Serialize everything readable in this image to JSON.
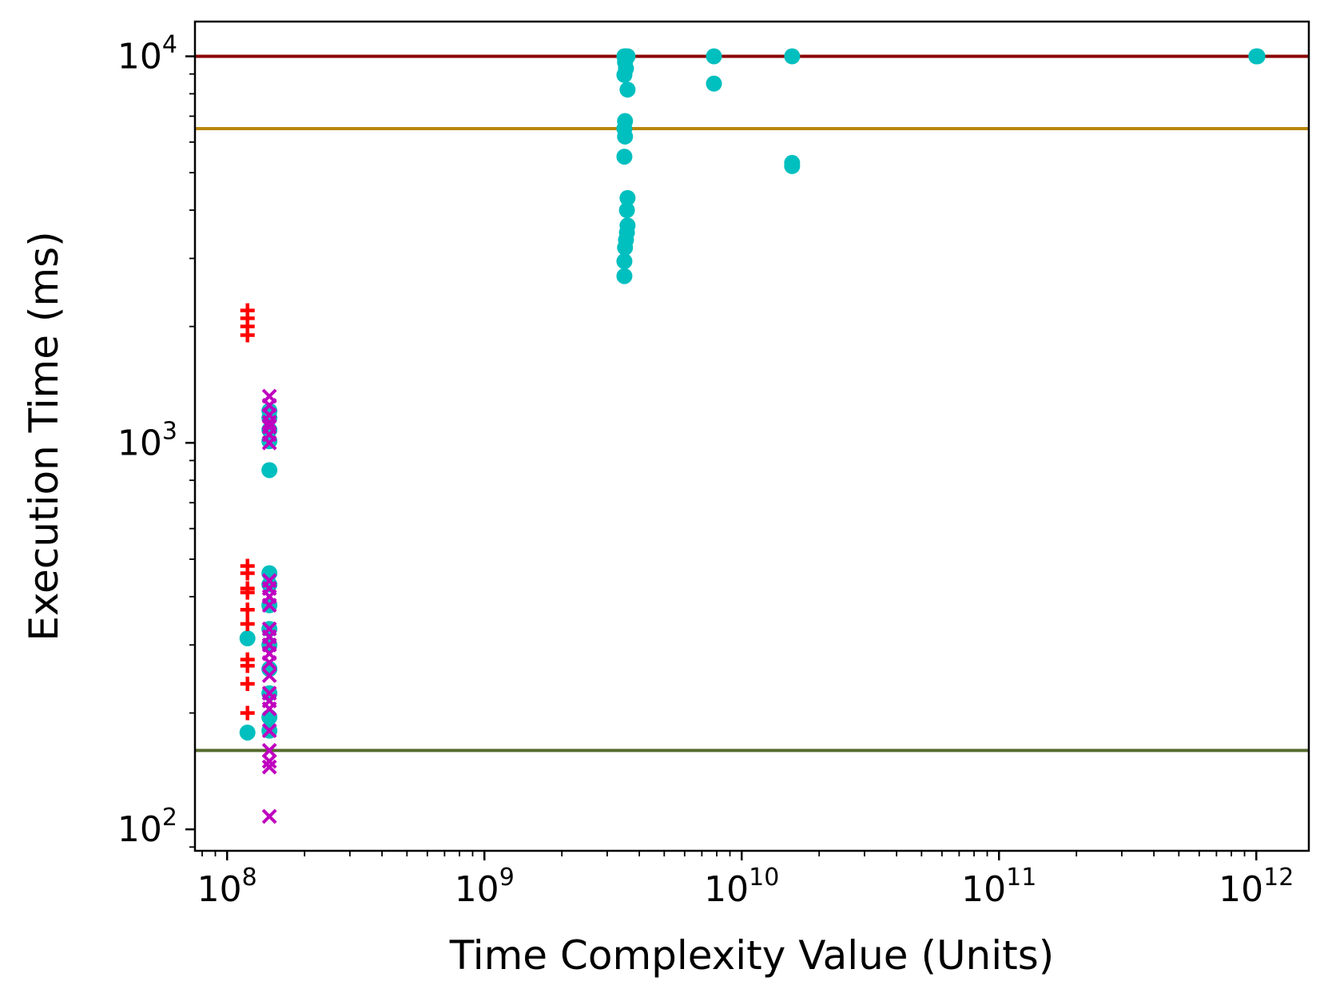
{
  "chart_data": {
    "type": "scatter",
    "title": "",
    "xlabel": "Time Complexity Value (Units)",
    "ylabel": "Execution Time (ms)",
    "xscale": "log",
    "yscale": "log",
    "xlim": [
      75000000,
      1600000000000
    ],
    "ylim": [
      88,
      12300
    ],
    "x_ticks": [
      {
        "value": 100000000,
        "base": "10",
        "exp": "8"
      },
      {
        "value": 1000000000,
        "base": "10",
        "exp": "9"
      },
      {
        "value": 10000000000,
        "base": "10",
        "exp": "10"
      },
      {
        "value": 100000000000,
        "base": "10",
        "exp": "11"
      },
      {
        "value": 1000000000000,
        "base": "10",
        "exp": "12"
      }
    ],
    "y_ticks": [
      {
        "value": 100,
        "base": "10",
        "exp": "2"
      },
      {
        "value": 1000,
        "base": "10",
        "exp": "3"
      },
      {
        "value": 10000,
        "base": "10",
        "exp": "4"
      }
    ],
    "hlines": [
      {
        "y": 10000,
        "color": "#8b0000"
      },
      {
        "y": 6500,
        "color": "#b8860b"
      },
      {
        "y": 160,
        "color": "#556b2f"
      }
    ],
    "series": [
      {
        "name": "circles",
        "marker": "circle",
        "color": "#00bfbf",
        "points": [
          [
            120000000,
            312
          ],
          [
            120000000,
            178
          ],
          [
            146000000,
            1210
          ],
          [
            146000000,
            1160
          ],
          [
            146000000,
            1080
          ],
          [
            146000000,
            1010
          ],
          [
            146000000,
            850
          ],
          [
            146000000,
            460
          ],
          [
            146000000,
            430
          ],
          [
            146000000,
            380
          ],
          [
            146000000,
            330
          ],
          [
            146000000,
            300
          ],
          [
            146000000,
            260
          ],
          [
            146000000,
            225
          ],
          [
            146000000,
            195
          ],
          [
            146000000,
            180
          ],
          [
            3500000000,
            10000
          ],
          [
            3550000000,
            10000
          ],
          [
            3600000000,
            10000
          ],
          [
            3520000000,
            9650
          ],
          [
            3550000000,
            9300
          ],
          [
            3500000000,
            8950
          ],
          [
            3600000000,
            8200
          ],
          [
            3520000000,
            6800
          ],
          [
            3500000000,
            6500
          ],
          [
            3520000000,
            6200
          ],
          [
            3500000000,
            5500
          ],
          [
            3600000000,
            4300
          ],
          [
            3580000000,
            4000
          ],
          [
            3600000000,
            3650
          ],
          [
            3580000000,
            3500
          ],
          [
            3550000000,
            3350
          ],
          [
            3520000000,
            3200
          ],
          [
            3500000000,
            2950
          ],
          [
            3500000000,
            2700
          ],
          [
            7800000000,
            10000
          ],
          [
            7800000000,
            8500
          ],
          [
            15700000000,
            10000
          ],
          [
            15700000000,
            5300
          ],
          [
            15700000000,
            5200
          ],
          [
            1000000000000,
            10000
          ],
          [
            1010000000000,
            10000
          ]
        ]
      },
      {
        "name": "plus",
        "marker": "plus",
        "color": "#ff0000",
        "points": [
          [
            120000000,
            2200
          ],
          [
            120000000,
            2100
          ],
          [
            120000000,
            2000
          ],
          [
            120000000,
            1900
          ],
          [
            120000000,
            480
          ],
          [
            120000000,
            460
          ],
          [
            120000000,
            420
          ],
          [
            120000000,
            410
          ],
          [
            120000000,
            370
          ],
          [
            120000000,
            340
          ],
          [
            120000000,
            275
          ],
          [
            120000000,
            265
          ],
          [
            120000000,
            238
          ],
          [
            120000000,
            200
          ]
        ]
      },
      {
        "name": "x",
        "marker": "x",
        "color": "#bf00bf",
        "points": [
          [
            146000000,
            1320
          ],
          [
            146000000,
            1250
          ],
          [
            146000000,
            1180
          ],
          [
            146000000,
            1130
          ],
          [
            146000000,
            1100
          ],
          [
            146000000,
            1050
          ],
          [
            146000000,
            1000
          ],
          [
            146000000,
            440
          ],
          [
            146000000,
            420
          ],
          [
            146000000,
            400
          ],
          [
            146000000,
            380
          ],
          [
            146000000,
            330
          ],
          [
            146000000,
            315
          ],
          [
            146000000,
            300
          ],
          [
            146000000,
            285
          ],
          [
            146000000,
            270
          ],
          [
            146000000,
            250
          ],
          [
            146000000,
            225
          ],
          [
            146000000,
            215
          ],
          [
            146000000,
            205
          ],
          [
            146000000,
            180
          ],
          [
            146000000,
            160
          ],
          [
            146000000,
            150
          ],
          [
            146000000,
            145
          ],
          [
            146000000,
            108
          ]
        ]
      }
    ]
  }
}
